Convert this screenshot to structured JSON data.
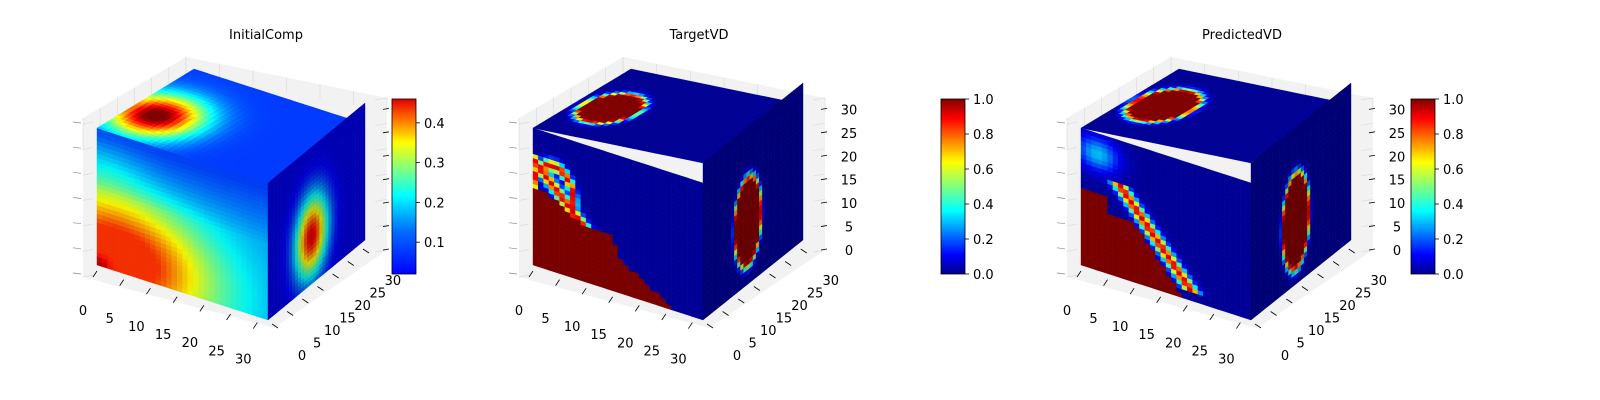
{
  "chart_data": [
    {
      "type": "voxel-3d",
      "title": "InitialComp",
      "x_ticks": [
        "0",
        "5",
        "10",
        "15",
        "20",
        "25",
        "30"
      ],
      "y_ticks": [
        "0",
        "5",
        "10",
        "15",
        "20",
        "25",
        "30"
      ],
      "z_ticks": [
        "",
        "",
        "",
        "",
        "",
        "",
        ""
      ],
      "xlim": [
        0,
        32
      ],
      "ylim": [
        0,
        32
      ],
      "zlim": [
        0,
        32
      ],
      "colormap": "jet",
      "colorbar": {
        "range": [
          0.02,
          0.46
        ],
        "ticks": [
          "0.1",
          "0.2",
          "0.3",
          "0.4"
        ]
      },
      "field": "composition"
    },
    {
      "type": "voxel-3d",
      "title": "TargetVD",
      "x_ticks": [
        "0",
        "5",
        "10",
        "15",
        "20",
        "25",
        "30"
      ],
      "y_ticks": [
        "0",
        "5",
        "10",
        "15",
        "20",
        "25",
        "30"
      ],
      "z_ticks": [
        "0",
        "5",
        "10",
        "15",
        "20",
        "25",
        "30"
      ],
      "xlim": [
        0,
        32
      ],
      "ylim": [
        0,
        32
      ],
      "zlim": [
        0,
        32
      ],
      "colormap": "jet",
      "colorbar": {
        "range": [
          0.0,
          1.0
        ],
        "ticks": [
          "0.0",
          "0.2",
          "0.4",
          "0.6",
          "0.8",
          "1.0"
        ]
      },
      "field": "target"
    },
    {
      "type": "voxel-3d",
      "title": "PredictedVD",
      "x_ticks": [
        "0",
        "5",
        "10",
        "15",
        "20",
        "25",
        "30"
      ],
      "y_ticks": [
        "0",
        "5",
        "10",
        "15",
        "20",
        "25",
        "30"
      ],
      "z_ticks": [
        "0",
        "5",
        "10",
        "15",
        "20",
        "25",
        "30"
      ],
      "xlim": [
        0,
        32
      ],
      "ylim": [
        0,
        32
      ],
      "zlim": [
        0,
        32
      ],
      "colormap": "jet",
      "colorbar": {
        "range": [
          0.0,
          1.0
        ],
        "ticks": [
          "0.0",
          "0.2",
          "0.4",
          "0.6",
          "0.8",
          "1.0"
        ]
      },
      "field": "predicted"
    }
  ]
}
